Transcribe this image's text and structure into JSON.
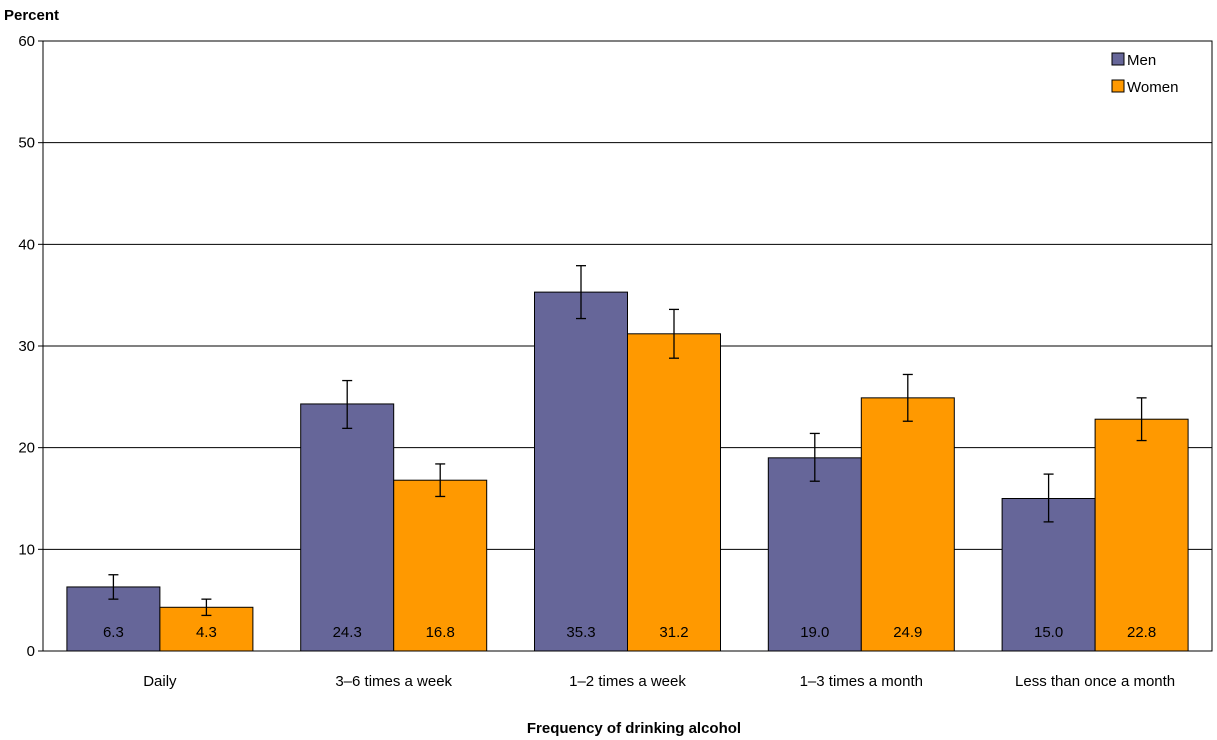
{
  "chart_data": {
    "type": "bar",
    "ylabel": "Percent",
    "xlabel": "Frequency of drinking alcohol",
    "ylim": [
      0,
      60
    ],
    "yticks": [
      0,
      10,
      20,
      30,
      40,
      50,
      60
    ],
    "grid": true,
    "legend_position": "top-right",
    "categories": [
      "Daily",
      "3–6 times a week",
      "1–2 times a week",
      "1–3 times a month",
      "Less than once a month"
    ],
    "series": [
      {
        "name": "Men",
        "color": "#666699",
        "values": [
          6.3,
          24.3,
          35.3,
          19.0,
          15.0
        ],
        "labels": [
          "6.3",
          "24.3",
          "35.3",
          "19.0",
          "15.0"
        ],
        "error_low": [
          5.1,
          21.9,
          32.7,
          16.7,
          12.7
        ],
        "error_high": [
          7.5,
          26.6,
          37.9,
          21.4,
          17.4
        ]
      },
      {
        "name": "Women",
        "color": "#FF9900",
        "values": [
          4.3,
          16.8,
          31.2,
          24.9,
          22.8
        ],
        "labels": [
          "4.3",
          "16.8",
          "31.2",
          "24.9",
          "22.8"
        ],
        "error_low": [
          3.5,
          15.2,
          28.8,
          22.6,
          20.7
        ],
        "error_high": [
          5.1,
          18.4,
          33.6,
          27.2,
          24.9
        ]
      }
    ]
  }
}
